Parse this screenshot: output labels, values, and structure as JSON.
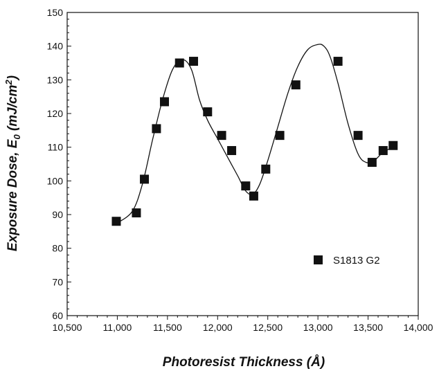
{
  "chart_data": {
    "type": "scatter",
    "xlabel": "Photoresist Thickness (Å)",
    "ylabel_main": "Exposure Dose, E",
    "ylabel_sub": "0",
    "ylabel_unit": " (mJ/cm",
    "ylabel_sup": "2",
    "ylabel_close": ")",
    "xlim": [
      10500,
      14000
    ],
    "ylim": [
      60,
      150
    ],
    "x_ticks": [
      10500,
      11000,
      11500,
      12000,
      12500,
      13000,
      13500,
      14000
    ],
    "x_tick_labels": [
      "10,500",
      "11,000",
      "11,500",
      "12,000",
      "12,500",
      "13,000",
      "13,500",
      "14,000"
    ],
    "y_ticks": [
      60,
      70,
      80,
      90,
      100,
      110,
      120,
      130,
      140,
      150
    ],
    "y_tick_labels": [
      "60",
      "70",
      "80",
      "90",
      "100",
      "110",
      "120",
      "130",
      "140",
      "150"
    ],
    "grid": false,
    "legend_position": "lower-right",
    "series": [
      {
        "name": "S1813 G2",
        "marker": "square",
        "color": "#111111",
        "x": [
          10990,
          11190,
          11270,
          11390,
          11470,
          11620,
          11760,
          11900,
          12040,
          12140,
          12280,
          12360,
          12480,
          12620,
          12780,
          13200,
          13400,
          13540,
          13650,
          13750
        ],
        "y": [
          88,
          90.5,
          100.5,
          115.5,
          123.5,
          135,
          135.5,
          120.5,
          113.5,
          109,
          98.5,
          95.5,
          103.5,
          113.5,
          128.5,
          135.5,
          113.5,
          105.5,
          109,
          110.5
        ]
      }
    ],
    "curve": {
      "color": "#111111",
      "x": [
        11000,
        11150,
        11250,
        11350,
        11450,
        11550,
        11650,
        11740,
        11820,
        11900,
        12000,
        12100,
        12200,
        12280,
        12350,
        12420,
        12500,
        12600,
        12700,
        12800,
        12900,
        13000,
        13060,
        13120,
        13200,
        13300,
        13400,
        13480,
        13560,
        13650,
        13750
      ],
      "y": [
        87.5,
        91,
        99,
        112,
        124,
        133,
        136,
        133,
        124,
        118,
        112.5,
        107,
        101.5,
        97,
        96,
        99,
        106,
        116,
        126,
        134,
        139,
        140.5,
        140,
        137,
        129,
        117,
        108,
        105.5,
        106,
        108.5,
        110
      ]
    }
  }
}
